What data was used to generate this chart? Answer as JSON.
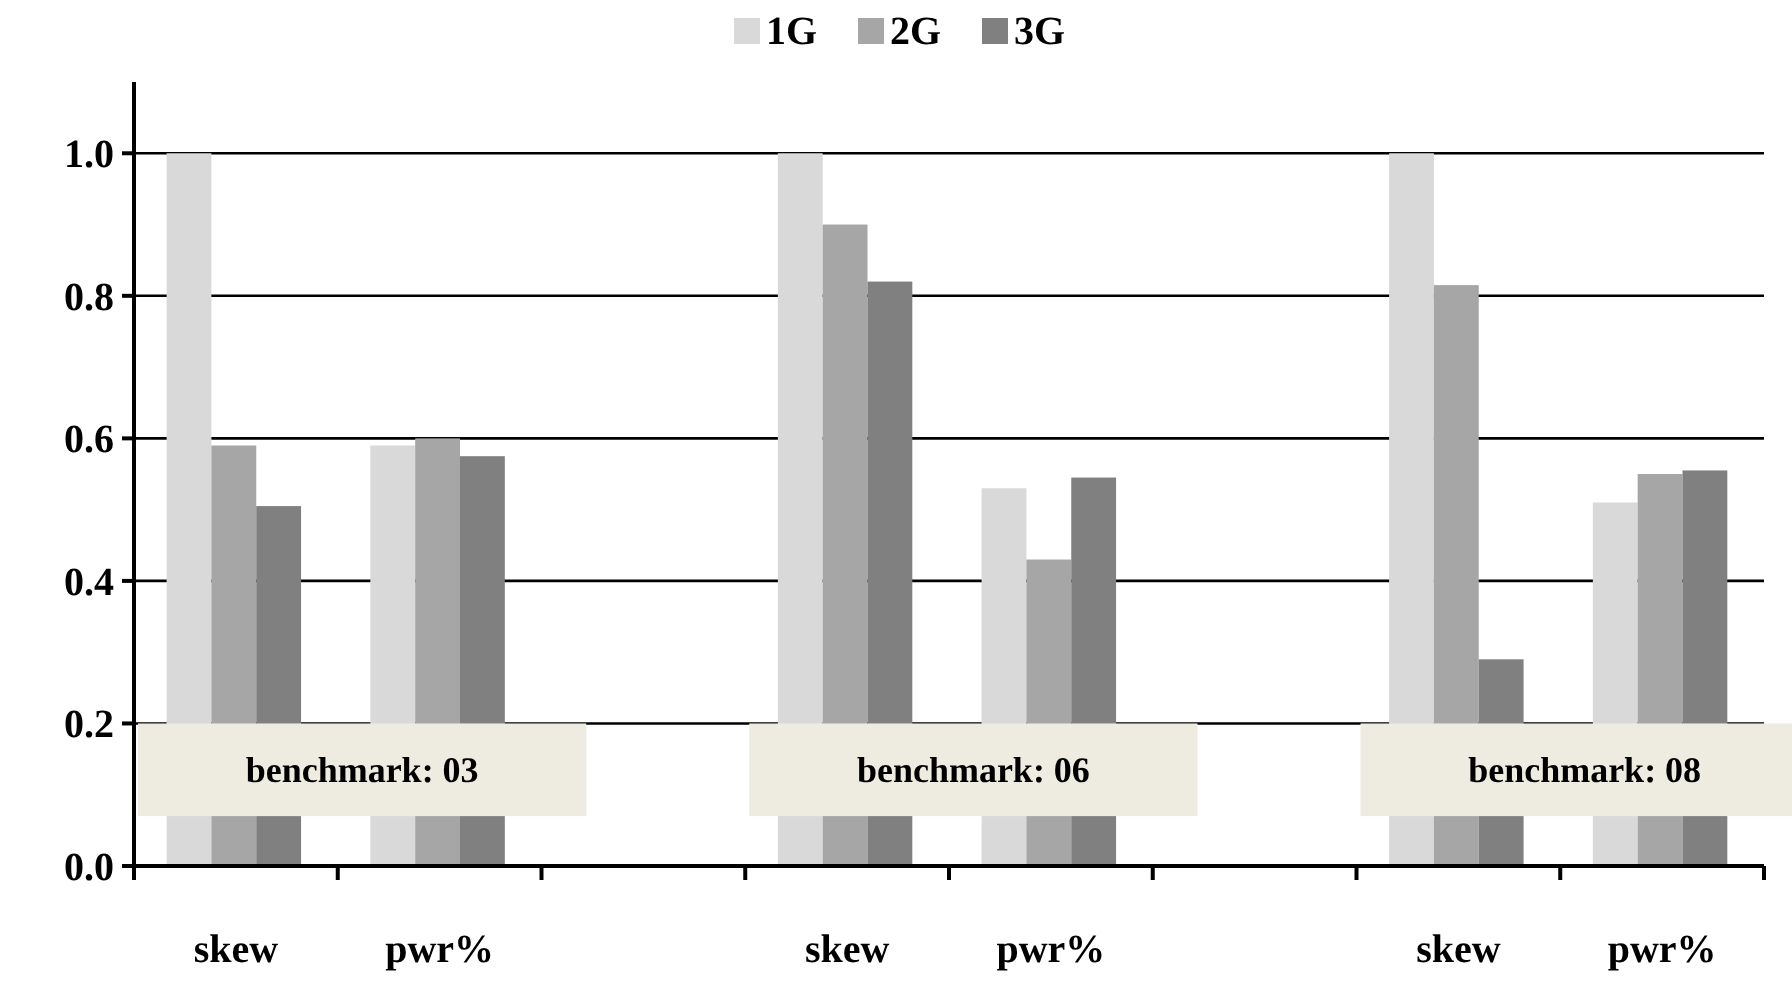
{
  "chart_data": {
    "type": "bar",
    "categories": [
      "skew",
      "pwr%",
      null,
      "skew",
      "pwr%",
      null,
      "skew",
      "pwr%"
    ],
    "series": [
      {
        "name": "1G",
        "color": "#d9d9d9",
        "values": [
          1.0,
          0.59,
          null,
          1.0,
          0.53,
          null,
          1.0,
          0.51
        ]
      },
      {
        "name": "2G",
        "color": "#a6a6a6",
        "values": [
          0.59,
          0.6,
          null,
          0.9,
          0.43,
          null,
          0.815,
          0.55
        ]
      },
      {
        "name": "3G",
        "color": "#808080",
        "values": [
          0.505,
          0.575,
          null,
          0.82,
          0.545,
          null,
          0.29,
          0.555
        ]
      }
    ],
    "ylim": [
      0,
      1.1
    ],
    "yticks": [
      {
        "value": 0,
        "label": "0.0"
      },
      {
        "value": 0.2,
        "label": "0.2"
      },
      {
        "value": 0.4,
        "label": "0.4"
      },
      {
        "value": 0.6,
        "label": "0.6"
      },
      {
        "value": 0.8,
        "label": "0.8"
      },
      {
        "value": 1,
        "label": "1.0"
      }
    ],
    "grid": "y",
    "legend": "top",
    "annotations": [
      "benchmark: 03",
      "benchmark: 06",
      "benchmark: 08"
    ]
  }
}
